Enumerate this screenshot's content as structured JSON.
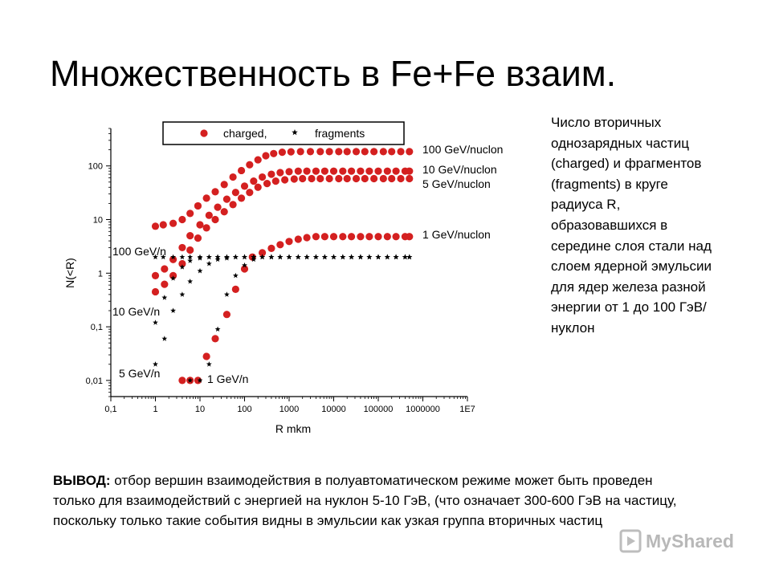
{
  "slide": {
    "title": "Множественность в Fe+Fe взаим.",
    "side_note": "Число вторичных однозарядных частиц (charged) и фрагментов (fragments) в круге радиуса R, образовавшихся в середине слоя стали над слоем ядерной эмульсии для ядер железа разной энергии от 1 до 100 ГэВ/нуклон",
    "conclusion_label": "ВЫВОД:",
    "conclusion_text": " отбор вершин взаимодействия в полуавтоматическом режиме может быть проведен только для взаимодействий с энергией на нуклон 5-10 ГэВ, (что означает 300-600 ГэВ на частицу, поскольку только такие события видны в эмульсии как узкая группа вторичных частиц",
    "watermark": "MyShared"
  },
  "chart_data": {
    "type": "scatter",
    "xlabel": "R mkm",
    "ylabel": "N(<R)",
    "x_scale": "log",
    "y_scale": "log",
    "xlim": [
      0.1,
      10000000
    ],
    "ylim": [
      0.005,
      500
    ],
    "x_ticks": [
      0.1,
      1,
      10,
      100,
      1000,
      10000,
      100000,
      1000000,
      10000000
    ],
    "x_tick_labels": [
      "0,1",
      "1",
      "10",
      "100",
      "1000",
      "10000",
      "100000",
      "1000000",
      "1E7"
    ],
    "y_ticks": [
      0.01,
      0.1,
      1,
      10,
      100
    ],
    "y_tick_labels": [
      "0,01",
      "0,1",
      "1",
      "10",
      "100"
    ],
    "grid": false,
    "legend": {
      "position": "top",
      "entries": [
        {
          "label": "charged,",
          "marker": "circle",
          "color": "#d42020"
        },
        {
          "label": "fragments",
          "marker": "star",
          "color": "#000000"
        }
      ]
    },
    "series": [
      {
        "label": "100 GeV/nuclon",
        "marker": "circle",
        "color": "#d42020",
        "points": [
          [
            1,
            7.5
          ],
          [
            1.5,
            8
          ],
          [
            2.5,
            8.5
          ],
          [
            4,
            10
          ],
          [
            6,
            13
          ],
          [
            9,
            18
          ],
          [
            14,
            25
          ],
          [
            22,
            33
          ],
          [
            35,
            45
          ],
          [
            55,
            62
          ],
          [
            85,
            82
          ],
          [
            130,
            105
          ],
          [
            200,
            130
          ],
          [
            300,
            155
          ],
          [
            450,
            170
          ],
          [
            700,
            180
          ],
          [
            1100,
            183
          ],
          [
            1800,
            185
          ],
          [
            3000,
            185
          ],
          [
            5000,
            185
          ],
          [
            8000,
            185
          ],
          [
            13000,
            185
          ],
          [
            20000,
            185
          ],
          [
            32000,
            185
          ],
          [
            50000,
            185
          ],
          [
            80000,
            185
          ],
          [
            130000,
            185
          ],
          [
            200000,
            185
          ],
          [
            320000,
            185
          ],
          [
            500000,
            185
          ]
        ]
      },
      {
        "label": "10 GeV/nuclon",
        "marker": "circle",
        "color": "#d42020",
        "points": [
          [
            1,
            0.9
          ],
          [
            1.6,
            1.2
          ],
          [
            2.5,
            1.8
          ],
          [
            4,
            3
          ],
          [
            6,
            5
          ],
          [
            10,
            8
          ],
          [
            16,
            12
          ],
          [
            25,
            17
          ],
          [
            40,
            24
          ],
          [
            63,
            32
          ],
          [
            100,
            42
          ],
          [
            160,
            52
          ],
          [
            250,
            62
          ],
          [
            400,
            70
          ],
          [
            630,
            75
          ],
          [
            1000,
            78
          ],
          [
            1600,
            80
          ],
          [
            2500,
            80
          ],
          [
            4000,
            80
          ],
          [
            6300,
            80
          ],
          [
            10000,
            80
          ],
          [
            16000,
            80
          ],
          [
            25000,
            80
          ],
          [
            40000,
            80
          ],
          [
            63000,
            80
          ],
          [
            100000,
            80
          ],
          [
            160000,
            80
          ],
          [
            250000,
            80
          ],
          [
            400000,
            80
          ],
          [
            500000,
            80
          ]
        ]
      },
      {
        "label": "5 GeV/nuclon",
        "marker": "circle",
        "color": "#d42020",
        "points": [
          [
            1,
            0.45
          ],
          [
            1.6,
            0.62
          ],
          [
            2.5,
            0.9
          ],
          [
            4,
            1.5
          ],
          [
            6,
            2.7
          ],
          [
            9,
            4.5
          ],
          [
            14,
            7
          ],
          [
            22,
            10
          ],
          [
            35,
            14
          ],
          [
            55,
            19
          ],
          [
            85,
            25
          ],
          [
            130,
            32
          ],
          [
            200,
            40
          ],
          [
            320,
            47
          ],
          [
            500,
            52
          ],
          [
            800,
            55
          ],
          [
            1300,
            57
          ],
          [
            2000,
            58
          ],
          [
            3200,
            58
          ],
          [
            5000,
            58
          ],
          [
            8000,
            58
          ],
          [
            13000,
            58
          ],
          [
            20000,
            58
          ],
          [
            32000,
            58
          ],
          [
            50000,
            58
          ],
          [
            80000,
            58
          ],
          [
            130000,
            58
          ],
          [
            200000,
            58
          ],
          [
            320000,
            58
          ],
          [
            500000,
            58
          ]
        ]
      },
      {
        "label": "1 GeV/nuclon",
        "marker": "circle",
        "color": "#d42020",
        "points": [
          [
            4,
            0.01
          ],
          [
            6,
            0.01
          ],
          [
            9,
            0.01
          ],
          [
            14,
            0.028
          ],
          [
            22,
            0.06
          ],
          [
            40,
            0.17
          ],
          [
            63,
            0.5
          ],
          [
            100,
            1.2
          ],
          [
            150,
            2
          ],
          [
            250,
            2.4
          ],
          [
            400,
            2.9
          ],
          [
            630,
            3.4
          ],
          [
            1000,
            3.9
          ],
          [
            1600,
            4.3
          ],
          [
            2500,
            4.6
          ],
          [
            4000,
            4.8
          ],
          [
            6300,
            4.8
          ],
          [
            10000,
            4.8
          ],
          [
            16000,
            4.8
          ],
          [
            25000,
            4.8
          ],
          [
            40000,
            4.8
          ],
          [
            63000,
            4.8
          ],
          [
            100000,
            4.8
          ],
          [
            160000,
            4.8
          ],
          [
            250000,
            4.8
          ],
          [
            400000,
            4.8
          ],
          [
            500000,
            4.8
          ]
        ]
      },
      {
        "label": "100 GeV/n",
        "marker": "star",
        "color": "#000000",
        "points": [
          [
            1,
            2
          ],
          [
            1.5,
            2
          ],
          [
            2.5,
            2
          ],
          [
            4,
            2
          ],
          [
            6,
            2
          ],
          [
            10,
            2
          ],
          [
            16,
            2
          ],
          [
            25,
            2
          ],
          [
            40,
            2
          ],
          [
            63,
            2
          ],
          [
            100,
            2
          ],
          [
            160,
            2
          ],
          [
            250,
            2
          ],
          [
            400,
            2
          ],
          [
            630,
            2
          ],
          [
            1000,
            2
          ],
          [
            1600,
            2
          ],
          [
            2500,
            2
          ],
          [
            4000,
            2
          ],
          [
            6300,
            2
          ],
          [
            10000,
            2
          ],
          [
            16000,
            2
          ],
          [
            25000,
            2
          ],
          [
            40000,
            2
          ],
          [
            63000,
            2
          ],
          [
            100000,
            2
          ],
          [
            160000,
            2
          ],
          [
            250000,
            2
          ],
          [
            400000,
            2
          ],
          [
            500000,
            2
          ]
        ]
      },
      {
        "label": "10 GeV/n",
        "marker": "star",
        "color": "#000000",
        "points": [
          [
            1,
            0.12
          ],
          [
            1.6,
            0.35
          ],
          [
            2.5,
            0.8
          ],
          [
            4,
            1.3
          ],
          [
            6,
            1.7
          ],
          [
            10,
            1.9
          ],
          [
            16,
            2
          ],
          [
            25,
            2
          ],
          [
            40,
            2
          ],
          [
            63,
            2
          ],
          [
            100,
            2
          ],
          [
            160,
            2
          ],
          [
            250,
            2
          ],
          [
            400,
            2
          ],
          [
            630,
            2
          ],
          [
            1000,
            2
          ],
          [
            1600,
            2
          ],
          [
            2500,
            2
          ],
          [
            4000,
            2
          ],
          [
            6300,
            2
          ],
          [
            10000,
            2
          ],
          [
            16000,
            2
          ],
          [
            25000,
            2
          ],
          [
            40000,
            2
          ],
          [
            63000,
            2
          ],
          [
            100000,
            2
          ],
          [
            160000,
            2
          ],
          [
            250000,
            2
          ],
          [
            400000,
            2
          ],
          [
            500000,
            2
          ]
        ]
      },
      {
        "label": "5 GeV/n",
        "marker": "star",
        "color": "#000000",
        "points": [
          [
            1,
            0.02
          ],
          [
            1.6,
            0.06
          ],
          [
            2.5,
            0.2
          ],
          [
            4,
            0.4
          ],
          [
            6,
            0.7
          ],
          [
            10,
            1.1
          ],
          [
            16,
            1.5
          ],
          [
            25,
            1.8
          ],
          [
            40,
            1.9
          ],
          [
            63,
            2
          ],
          [
            100,
            2
          ],
          [
            160,
            2
          ],
          [
            250,
            2
          ],
          [
            400,
            2
          ],
          [
            630,
            2
          ],
          [
            1000,
            2
          ],
          [
            1600,
            2
          ],
          [
            2500,
            2
          ],
          [
            4000,
            2
          ],
          [
            6300,
            2
          ],
          [
            10000,
            2
          ],
          [
            16000,
            2
          ],
          [
            25000,
            2
          ],
          [
            40000,
            2
          ],
          [
            63000,
            2
          ],
          [
            100000,
            2
          ],
          [
            160000,
            2
          ],
          [
            250000,
            2
          ],
          [
            400000,
            2
          ],
          [
            500000,
            2
          ]
        ]
      },
      {
        "label": "1 GeV/n",
        "marker": "star",
        "color": "#000000",
        "points": [
          [
            6,
            0.01
          ],
          [
            10,
            0.01
          ],
          [
            16,
            0.02
          ],
          [
            25,
            0.09
          ],
          [
            40,
            0.4
          ],
          [
            63,
            0.9
          ],
          [
            100,
            1.4
          ],
          [
            160,
            1.8
          ],
          [
            250,
            2
          ],
          [
            400,
            2
          ],
          [
            630,
            2
          ],
          [
            1000,
            2
          ],
          [
            1600,
            2
          ],
          [
            2500,
            2
          ],
          [
            4000,
            2
          ],
          [
            6300,
            2
          ],
          [
            10000,
            2
          ],
          [
            16000,
            2
          ],
          [
            25000,
            2
          ],
          [
            40000,
            2
          ],
          [
            63000,
            2
          ],
          [
            100000,
            2
          ],
          [
            160000,
            2
          ],
          [
            250000,
            2
          ],
          [
            400000,
            2
          ],
          [
            500000,
            2
          ]
        ]
      }
    ]
  }
}
